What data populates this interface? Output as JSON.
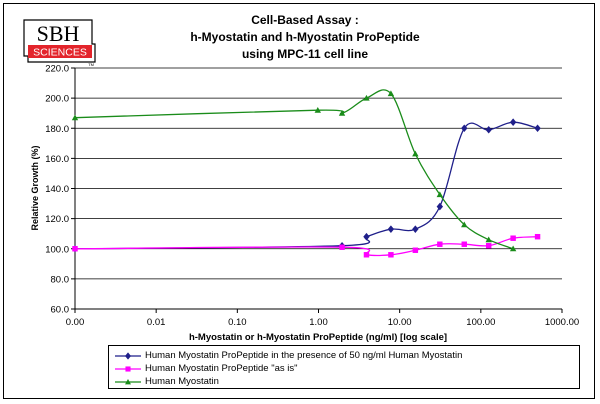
{
  "logo": {
    "line1": "SBH",
    "line2": "SCIENCES",
    "tm": "TM",
    "red": "#e3242b"
  },
  "chart_data": {
    "type": "line",
    "title_lines": [
      "Cell-Based Assay :",
      "h-Myostatin and h-Myostatin ProPeptide",
      "using MPC-11 cell line"
    ],
    "xlabel": "h-Myostatin or h-Myostatin ProPeptide (ng/ml) [log scale]",
    "ylabel": "Relative Growth (%)",
    "xscale": "log",
    "xlim": [
      0.001,
      1000
    ],
    "ylim": [
      60,
      220
    ],
    "x_ticks": [
      0.001,
      0.01,
      0.1,
      1,
      10,
      100,
      1000
    ],
    "x_tick_labels": [
      "0.00",
      "0.01",
      "0.10",
      "1.00",
      "10.00",
      "100.00",
      "1000.00"
    ],
    "y_ticks": [
      60,
      80,
      100,
      120,
      140,
      160,
      180,
      200,
      220
    ],
    "y_tick_labels": [
      "60.0",
      "80.0",
      "100.0",
      "120.0",
      "140.0",
      "160.0",
      "180.0",
      "200.0",
      "220.0"
    ],
    "grid": "horizontal",
    "legend_position": "bottom",
    "series": [
      {
        "name": "Human Myostatin ProPeptide in the presence of 50 ng/ml Human Myostatin",
        "marker": "diamond",
        "color": "#1f1f8a",
        "points": [
          [
            0.001,
            100
          ],
          [
            1.95,
            102
          ],
          [
            3.9,
            108
          ],
          [
            7.8,
            113
          ],
          [
            15.6,
            113
          ],
          [
            31.25,
            128
          ],
          [
            62.5,
            180
          ],
          [
            125,
            179
          ],
          [
            250,
            184
          ],
          [
            500,
            180
          ]
        ]
      },
      {
        "name": "Human Myostatin ProPeptide \"as is\"",
        "marker": "square",
        "color": "#ff00ff",
        "points": [
          [
            0.001,
            100
          ],
          [
            1.95,
            101
          ],
          [
            3.9,
            96
          ],
          [
            7.8,
            96
          ],
          [
            15.6,
            99
          ],
          [
            31.25,
            103
          ],
          [
            62.5,
            103
          ],
          [
            125,
            102
          ],
          [
            250,
            107
          ],
          [
            500,
            108
          ]
        ]
      },
      {
        "name": "Human Myostatin",
        "marker": "triangle",
        "color": "#1a8c1a",
        "points": [
          [
            0.001,
            187
          ],
          [
            0.98,
            192
          ],
          [
            1.95,
            190
          ],
          [
            3.9,
            200
          ],
          [
            7.8,
            203
          ],
          [
            15.6,
            163
          ],
          [
            31.25,
            136
          ],
          [
            62.5,
            116
          ],
          [
            125,
            106
          ],
          [
            250,
            100
          ]
        ]
      }
    ]
  }
}
